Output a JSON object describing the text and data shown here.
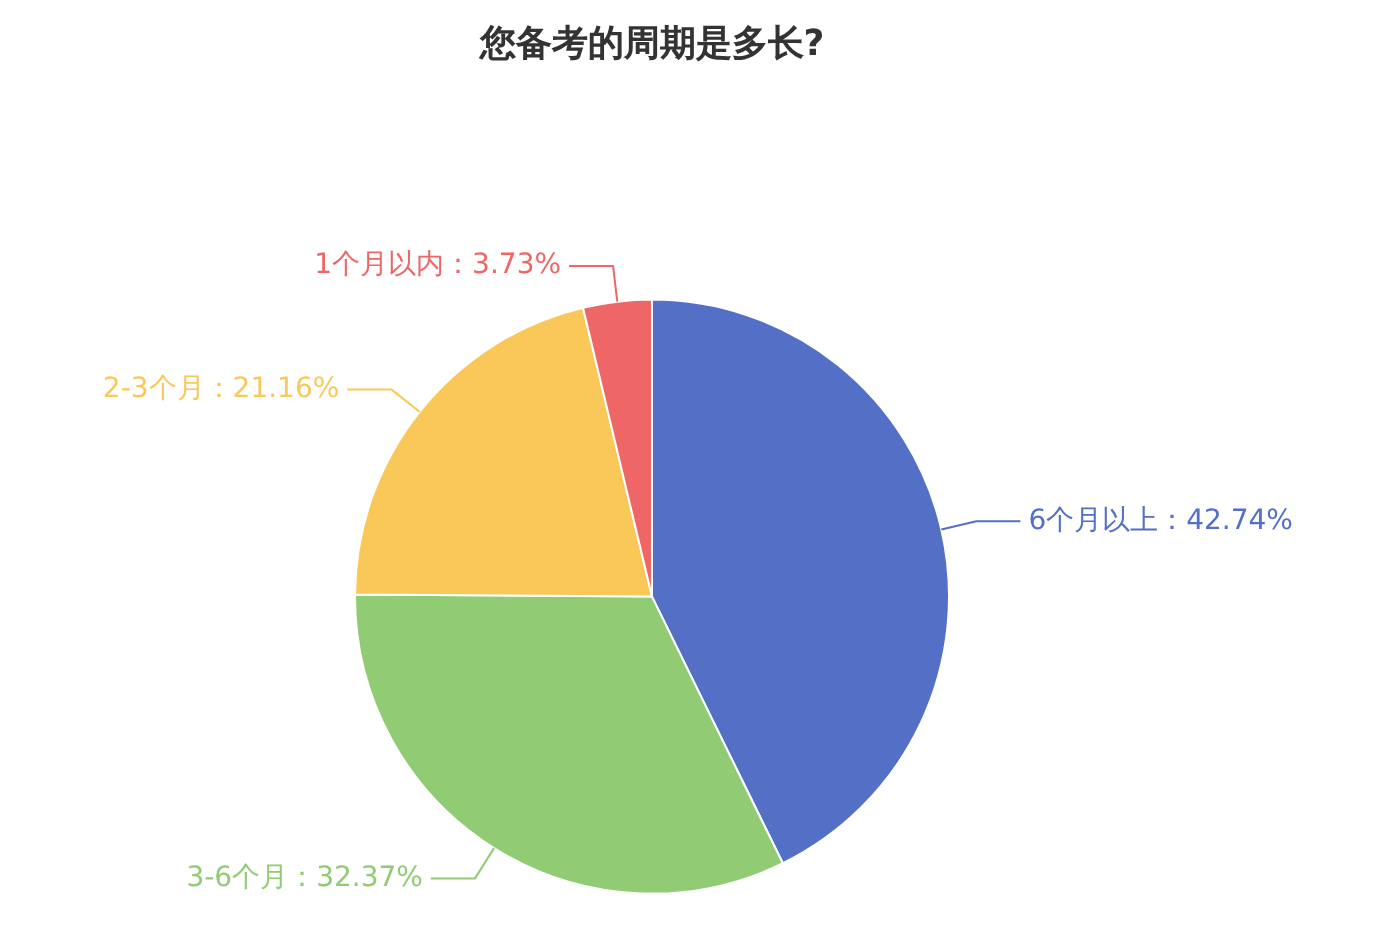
{
  "chart_data": {
    "type": "pie",
    "title": "您备考的周期是多长?",
    "categories": [
      "6个月以上",
      "3-6个月",
      "2-3个月",
      "1个月以内"
    ],
    "values": [
      42.74,
      32.37,
      21.16,
      3.73
    ],
    "colors": [
      "#5470c6",
      "#91cc75",
      "#fac858",
      "#ee6666"
    ],
    "value_labels": [
      "42.74%",
      "32.37%",
      "21.16%",
      "3.73%"
    ],
    "legend": false
  }
}
